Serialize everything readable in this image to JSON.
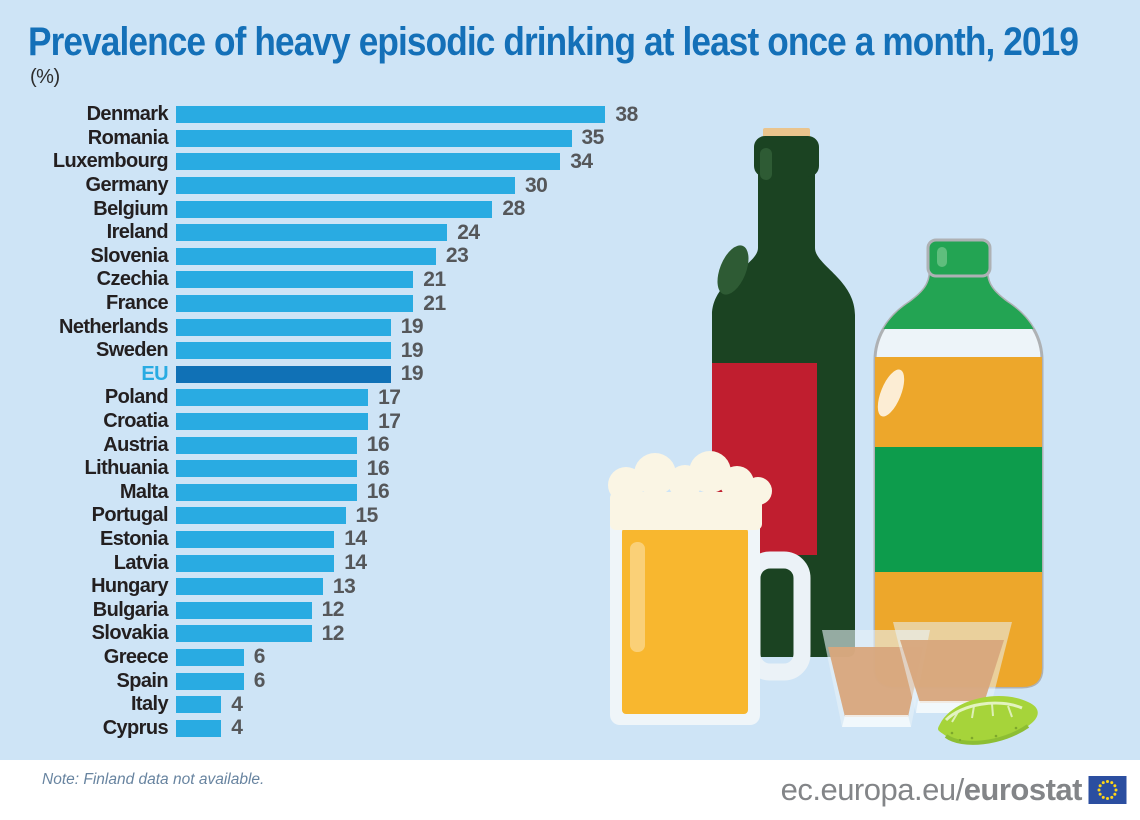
{
  "header": {
    "title": "Prevalence of heavy episodic drinking at least once a month, 2019",
    "unit_label": "(%)"
  },
  "chart_data": {
    "type": "bar",
    "orientation": "horizontal",
    "title": "Prevalence of heavy episodic drinking at least once a month, 2019",
    "unit": "%",
    "xlim": [
      0,
      40
    ],
    "grid": false,
    "legend": "none",
    "categories": [
      "Denmark",
      "Romania",
      "Luxembourg",
      "Germany",
      "Belgium",
      "Ireland",
      "Slovenia",
      "Czechia",
      "France",
      "Netherlands",
      "Sweden",
      "EU",
      "Poland",
      "Croatia",
      "Austria",
      "Lithuania",
      "Malta",
      "Portugal",
      "Estonia",
      "Latvia",
      "Hungary",
      "Bulgaria",
      "Slovakia",
      "Greece",
      "Spain",
      "Italy",
      "Cyprus"
    ],
    "values": [
      38,
      35,
      34,
      30,
      28,
      24,
      23,
      21,
      21,
      19,
      19,
      19,
      17,
      17,
      16,
      16,
      16,
      15,
      14,
      14,
      13,
      12,
      12,
      6,
      6,
      4,
      4
    ],
    "highlight": {
      "category": "EU",
      "color": "#1071B6"
    },
    "note": "Note: Finland data not available."
  },
  "note": {
    "text": "Note: Finland data not available."
  },
  "footer": {
    "url_regular": "ec.europa.eu/",
    "url_bold": "eurostat",
    "flag_icon": "eu-flag-icon"
  },
  "colors": {
    "background": "#CEE4F6",
    "bar": "#29ABE2",
    "bar_highlight": "#1071B6",
    "title_text": "#1470B8",
    "country_label_text": "#231F20",
    "eu_label_text": "#29ABE2",
    "value_text": "#55575A",
    "note_text": "#6884A0",
    "footer_text": "#838588",
    "eu_flag_blue": "#2B4EA0",
    "eu_flag_star": "#FFD617"
  },
  "illustration": {
    "items": [
      "wine-bottle-icon",
      "whisky-bottle-icon",
      "beer-mug-icon",
      "shot-glass-icon",
      "shot-glass-icon",
      "lime-wedge-icon"
    ]
  }
}
